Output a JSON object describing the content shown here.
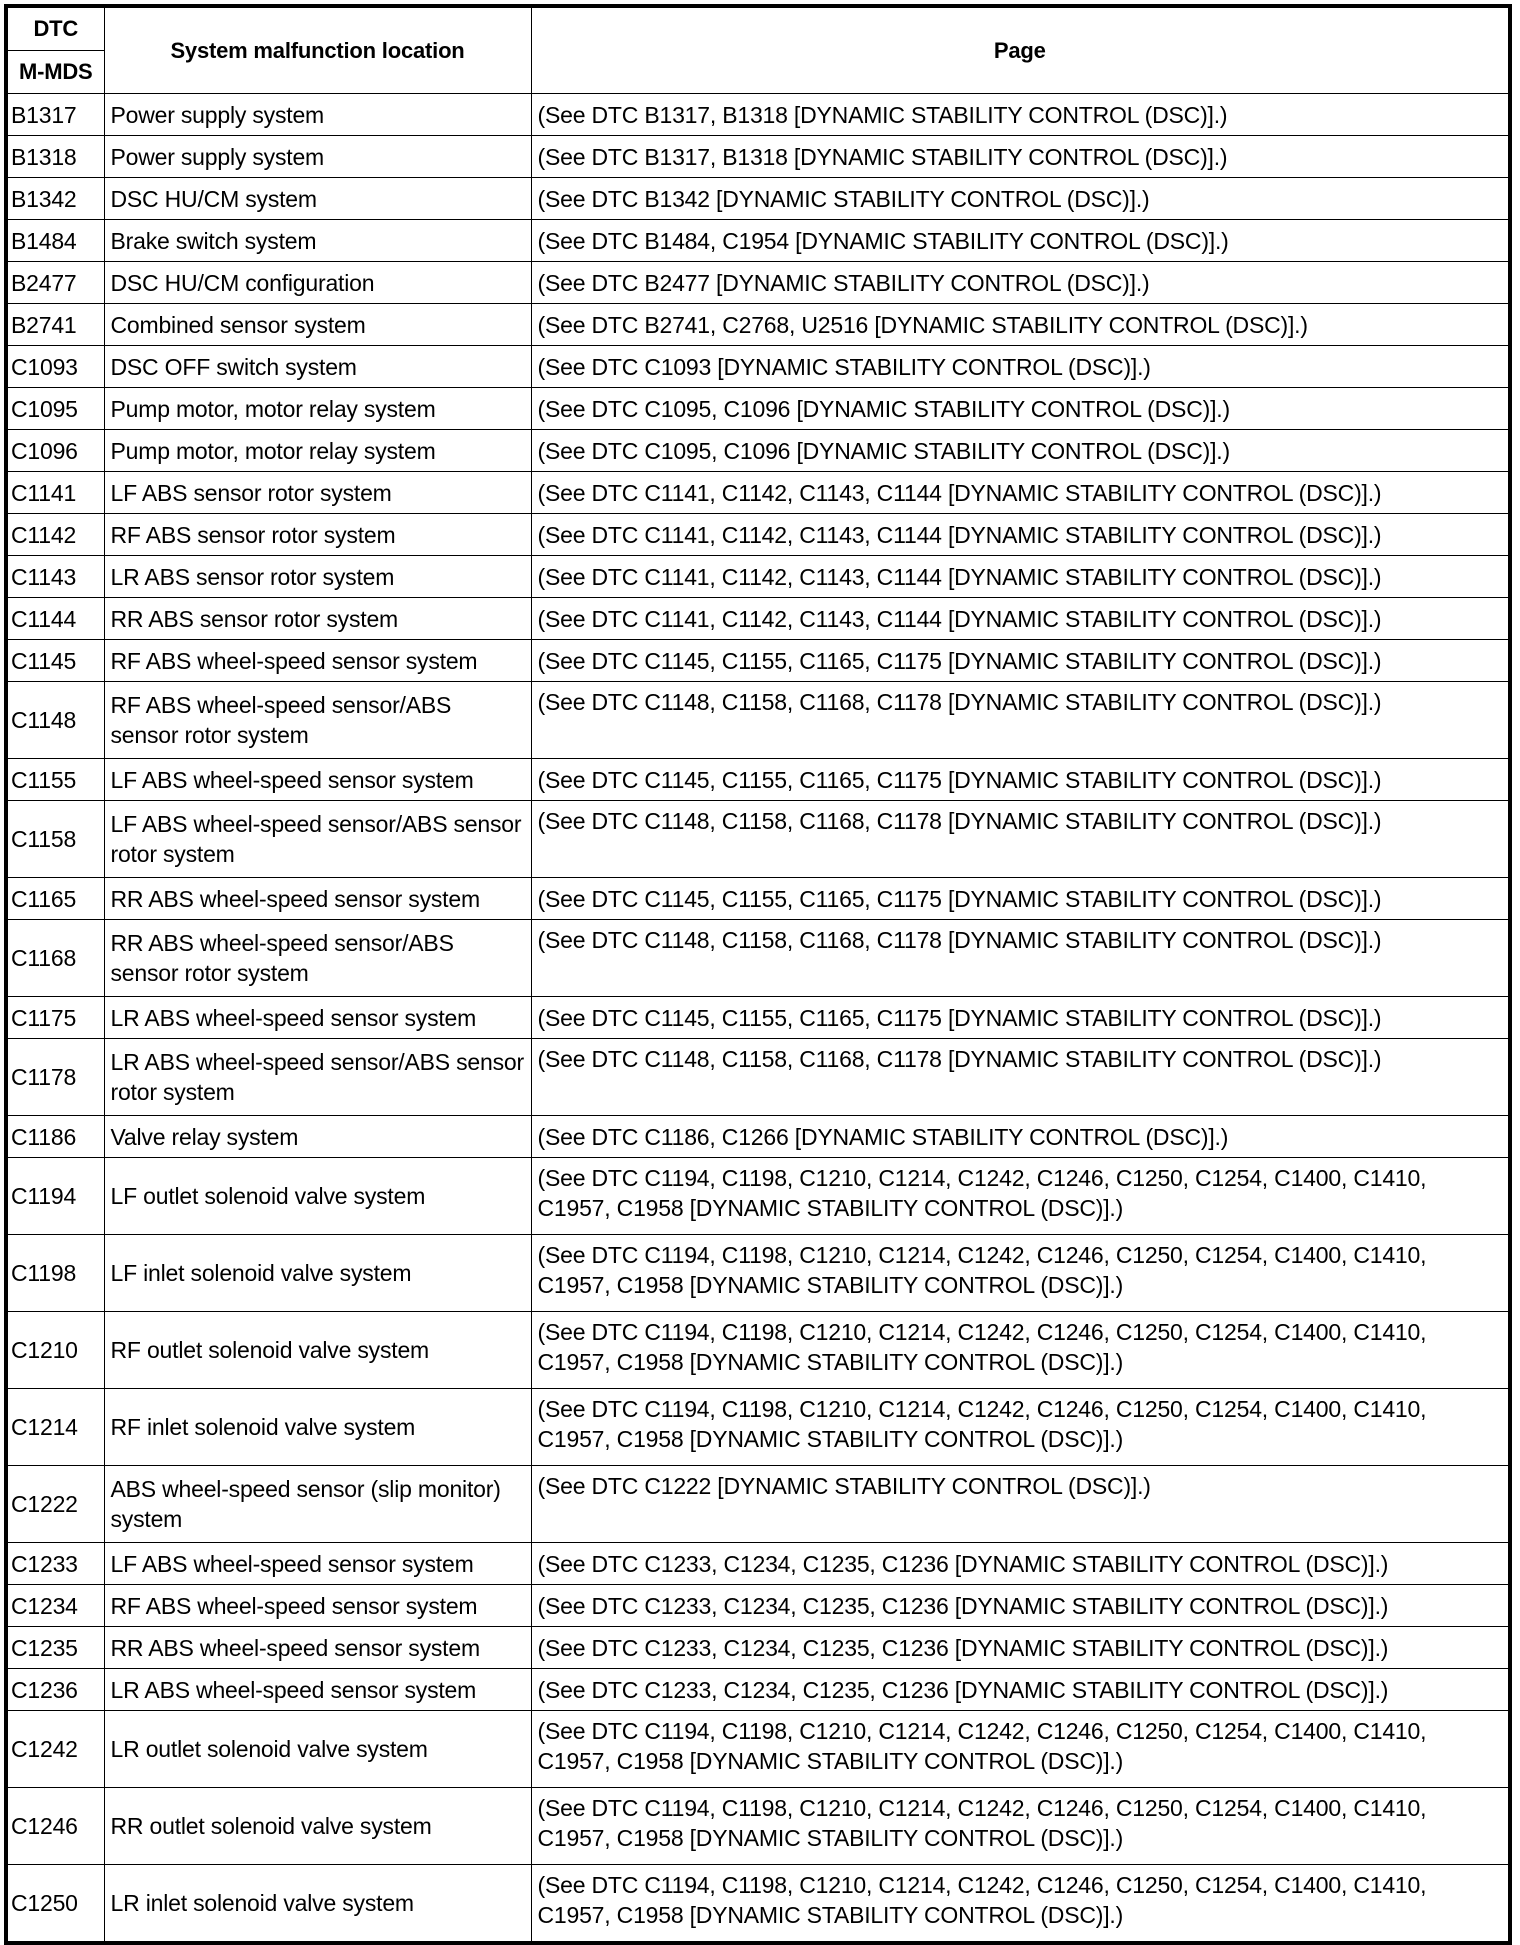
{
  "header": {
    "dtc": "DTC",
    "mmds": "M-MDS",
    "location": "System malfunction location",
    "page": "Page"
  },
  "rows": [
    {
      "code": "B1317",
      "location": "Power supply system",
      "page": "(See DTC B1317, B1318 [DYNAMIC STABILITY CONTROL (DSC)].)"
    },
    {
      "code": "B1318",
      "location": "Power supply system",
      "page": "(See DTC B1317, B1318 [DYNAMIC STABILITY CONTROL (DSC)].)"
    },
    {
      "code": "B1342",
      "location": "DSC HU/CM system",
      "page": "(See DTC B1342 [DYNAMIC STABILITY CONTROL (DSC)].)"
    },
    {
      "code": "B1484",
      "location": "Brake switch system",
      "page": "(See DTC B1484, C1954 [DYNAMIC STABILITY CONTROL (DSC)].)"
    },
    {
      "code": "B2477",
      "location": "DSC HU/CM configuration",
      "page": "(See DTC B2477 [DYNAMIC STABILITY CONTROL (DSC)].)"
    },
    {
      "code": "B2741",
      "location": "Combined sensor system",
      "page": "(See DTC B2741, C2768, U2516 [DYNAMIC STABILITY CONTROL (DSC)].)"
    },
    {
      "code": "C1093",
      "location": "DSC OFF switch system",
      "page": "(See DTC C1093 [DYNAMIC STABILITY CONTROL (DSC)].)"
    },
    {
      "code": "C1095",
      "location": "Pump motor, motor relay system",
      "page": "(See DTC C1095, C1096 [DYNAMIC STABILITY CONTROL (DSC)].)"
    },
    {
      "code": "C1096",
      "location": "Pump motor, motor relay system",
      "page": "(See DTC C1095, C1096 [DYNAMIC STABILITY CONTROL (DSC)].)"
    },
    {
      "code": "C1141",
      "location": "LF ABS sensor rotor system",
      "page": "(See DTC C1141, C1142, C1143, C1144 [DYNAMIC STABILITY CONTROL (DSC)].)"
    },
    {
      "code": "C1142",
      "location": "RF ABS sensor rotor system",
      "page": "(See DTC C1141, C1142, C1143, C1144 [DYNAMIC STABILITY CONTROL (DSC)].)"
    },
    {
      "code": "C1143",
      "location": "LR ABS sensor rotor system",
      "page": "(See DTC C1141, C1142, C1143, C1144 [DYNAMIC STABILITY CONTROL (DSC)].)"
    },
    {
      "code": "C1144",
      "location": "RR ABS sensor rotor system",
      "page": "(See DTC C1141, C1142, C1143, C1144 [DYNAMIC STABILITY CONTROL (DSC)].)"
    },
    {
      "code": "C1145",
      "location": "RF ABS wheel-speed sensor system",
      "page": "(See DTC C1145, C1155, C1165, C1175 [DYNAMIC STABILITY CONTROL (DSC)].)"
    },
    {
      "code": "C1148",
      "location": "RF ABS wheel-speed sensor/ABS sensor rotor system",
      "page": "(See DTC C1148, C1158, C1168, C1178 [DYNAMIC STABILITY CONTROL (DSC)].)",
      "double": true
    },
    {
      "code": "C1155",
      "location": "LF ABS wheel-speed sensor system",
      "page": "(See DTC C1145, C1155, C1165, C1175 [DYNAMIC STABILITY CONTROL (DSC)].)"
    },
    {
      "code": "C1158",
      "location": "LF ABS wheel-speed sensor/ABS sensor rotor system",
      "page": "(See DTC C1148, C1158, C1168, C1178 [DYNAMIC STABILITY CONTROL (DSC)].)",
      "double": true
    },
    {
      "code": "C1165",
      "location": "RR ABS wheel-speed sensor system",
      "page": "(See DTC C1145, C1155, C1165, C1175 [DYNAMIC STABILITY CONTROL (DSC)].)"
    },
    {
      "code": "C1168",
      "location": "RR ABS wheel-speed sensor/ABS sensor rotor system",
      "page": "(See DTC C1148, C1158, C1168, C1178 [DYNAMIC STABILITY CONTROL (DSC)].)",
      "double": true
    },
    {
      "code": "C1175",
      "location": "LR ABS wheel-speed sensor system",
      "page": "(See DTC C1145, C1155, C1165, C1175 [DYNAMIC STABILITY CONTROL (DSC)].)"
    },
    {
      "code": "C1178",
      "location": "LR ABS wheel-speed sensor/ABS sensor rotor system",
      "page": "(See DTC C1148, C1158, C1168, C1178 [DYNAMIC STABILITY CONTROL (DSC)].)",
      "double": true
    },
    {
      "code": "C1186",
      "location": "Valve relay system",
      "page": "(See DTC C1186, C1266 [DYNAMIC STABILITY CONTROL (DSC)].)"
    },
    {
      "code": "C1194",
      "location": "LF outlet solenoid valve system",
      "page": "(See DTC C1194, C1198, C1210, C1214, C1242, C1246, C1250, C1254, C1400, C1410, C1957, C1958 [DYNAMIC STABILITY CONTROL (DSC)].)",
      "double": true
    },
    {
      "code": "C1198",
      "location": "LF inlet solenoid valve system",
      "page": "(See DTC C1194, C1198, C1210, C1214, C1242, C1246, C1250, C1254, C1400, C1410, C1957, C1958 [DYNAMIC STABILITY CONTROL (DSC)].)",
      "double": true
    },
    {
      "code": "C1210",
      "location": "RF outlet solenoid valve system",
      "page": "(See DTC C1194, C1198, C1210, C1214, C1242, C1246, C1250, C1254, C1400, C1410, C1957, C1958 [DYNAMIC STABILITY CONTROL (DSC)].)",
      "double": true
    },
    {
      "code": "C1214",
      "location": "RF inlet solenoid valve system",
      "page": "(See DTC C1194, C1198, C1210, C1214, C1242, C1246, C1250, C1254, C1400, C1410, C1957, C1958 [DYNAMIC STABILITY CONTROL (DSC)].)",
      "double": true
    },
    {
      "code": "C1222",
      "location": "ABS wheel-speed sensor (slip monitor) system",
      "page": "(See DTC C1222 [DYNAMIC STABILITY CONTROL (DSC)].)",
      "double": true
    },
    {
      "code": "C1233",
      "location": "LF ABS wheel-speed sensor system",
      "page": "(See DTC C1233, C1234, C1235, C1236 [DYNAMIC STABILITY CONTROL (DSC)].)"
    },
    {
      "code": "C1234",
      "location": "RF ABS wheel-speed sensor system",
      "page": "(See DTC C1233, C1234, C1235, C1236 [DYNAMIC STABILITY CONTROL (DSC)].)"
    },
    {
      "code": "C1235",
      "location": "RR ABS wheel-speed sensor system",
      "page": "(See DTC C1233, C1234, C1235, C1236 [DYNAMIC STABILITY CONTROL (DSC)].)"
    },
    {
      "code": "C1236",
      "location": "LR ABS wheel-speed sensor system",
      "page": "(See DTC C1233, C1234, C1235, C1236 [DYNAMIC STABILITY CONTROL (DSC)].)"
    },
    {
      "code": "C1242",
      "location": "LR outlet solenoid valve system",
      "page": "(See DTC C1194, C1198, C1210, C1214, C1242, C1246, C1250, C1254, C1400, C1410, C1957, C1958 [DYNAMIC STABILITY CONTROL (DSC)].)",
      "double": true
    },
    {
      "code": "C1246",
      "location": "RR outlet solenoid valve system",
      "page": "(See DTC C1194, C1198, C1210, C1214, C1242, C1246, C1250, C1254, C1400, C1410, C1957, C1958 [DYNAMIC STABILITY CONTROL (DSC)].)",
      "double": true
    },
    {
      "code": "C1250",
      "location": "LR inlet solenoid valve system",
      "page": "(See DTC C1194, C1198, C1210, C1214, C1242, C1246, C1250, C1254, C1400, C1410, C1957, C1958 [DYNAMIC STABILITY CONTROL (DSC)].)",
      "double": true
    }
  ]
}
